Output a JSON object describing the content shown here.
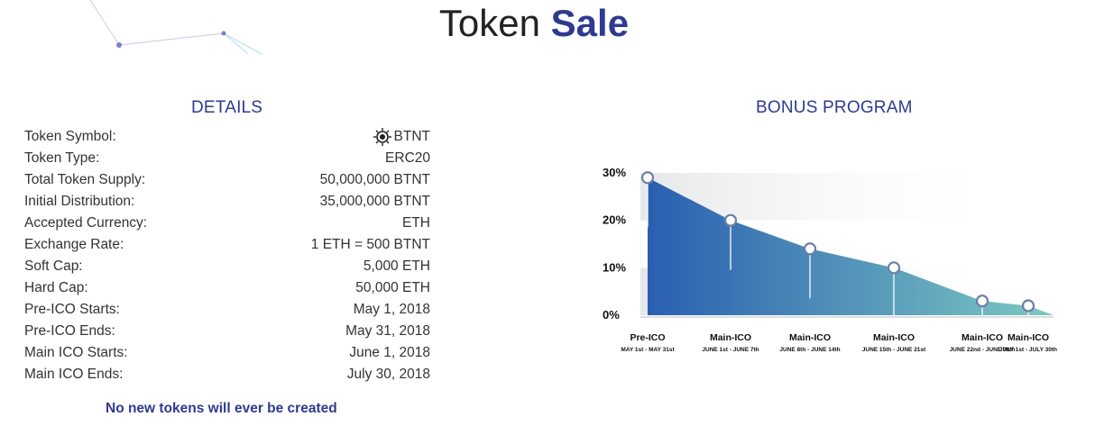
{
  "page": {
    "title_main": "Token",
    "title_accent": "Sale"
  },
  "details": {
    "heading": "DETAILS",
    "rows": [
      {
        "label": "Token Symbol:",
        "value": "BTNT",
        "icon": "token-logo-icon"
      },
      {
        "label": "Token Type:",
        "value": "ERC20"
      },
      {
        "label": "Total Token Supply:",
        "value": "50,000,000 BTNT"
      },
      {
        "label": "Initial Distribution:",
        "value": "35,000,000 BTNT"
      },
      {
        "label": "Accepted Currency:",
        "value": "ETH"
      },
      {
        "label": "Exchange Rate:",
        "value": "1 ETH = 500 BTNT"
      },
      {
        "label": "Soft Cap:",
        "value": "5,000 ETH"
      },
      {
        "label": "Hard Cap:",
        "value": "50,000 ETH"
      },
      {
        "label": "Pre-ICO Starts:",
        "value": "May 1, 2018"
      },
      {
        "label": "Pre-ICO Ends:",
        "value": "May 31, 2018"
      },
      {
        "label": "Main ICO Starts:",
        "value": "June 1, 2018"
      },
      {
        "label": "Main ICO Ends:",
        "value": "July 30, 2018"
      }
    ],
    "note": "No new tokens will ever be created"
  },
  "bonus": {
    "heading": "BONUS PROGRAM"
  },
  "colors": {
    "accent": "#2f3a8f",
    "gradient_start": "#2a5fb0",
    "gradient_end": "#7cc9c2"
  },
  "chart_data": {
    "type": "area",
    "ylim": [
      0,
      30
    ],
    "y_ticks": [
      0,
      10,
      20,
      30
    ],
    "y_tick_labels": [
      "0%",
      "10%",
      "20%",
      "30%"
    ],
    "categories": [
      {
        "name": "Pre-ICO",
        "dates": "MAY 1st - MAY 31st"
      },
      {
        "name": "Main-ICO",
        "dates": "JUNE 1st - JUNE 7th"
      },
      {
        "name": "Main-ICO",
        "dates": "JUNE 8th - JUNE 14th"
      },
      {
        "name": "Main-ICO",
        "dates": "JUNE 15th - JUNE 21st"
      },
      {
        "name": "Main-ICO",
        "dates": "JUNE 22nd - JUNE 30th"
      },
      {
        "name": "Main-ICO",
        "dates": "JULY 1st - JULY 30th"
      }
    ],
    "values": [
      29,
      20,
      14,
      10,
      3,
      2
    ]
  }
}
